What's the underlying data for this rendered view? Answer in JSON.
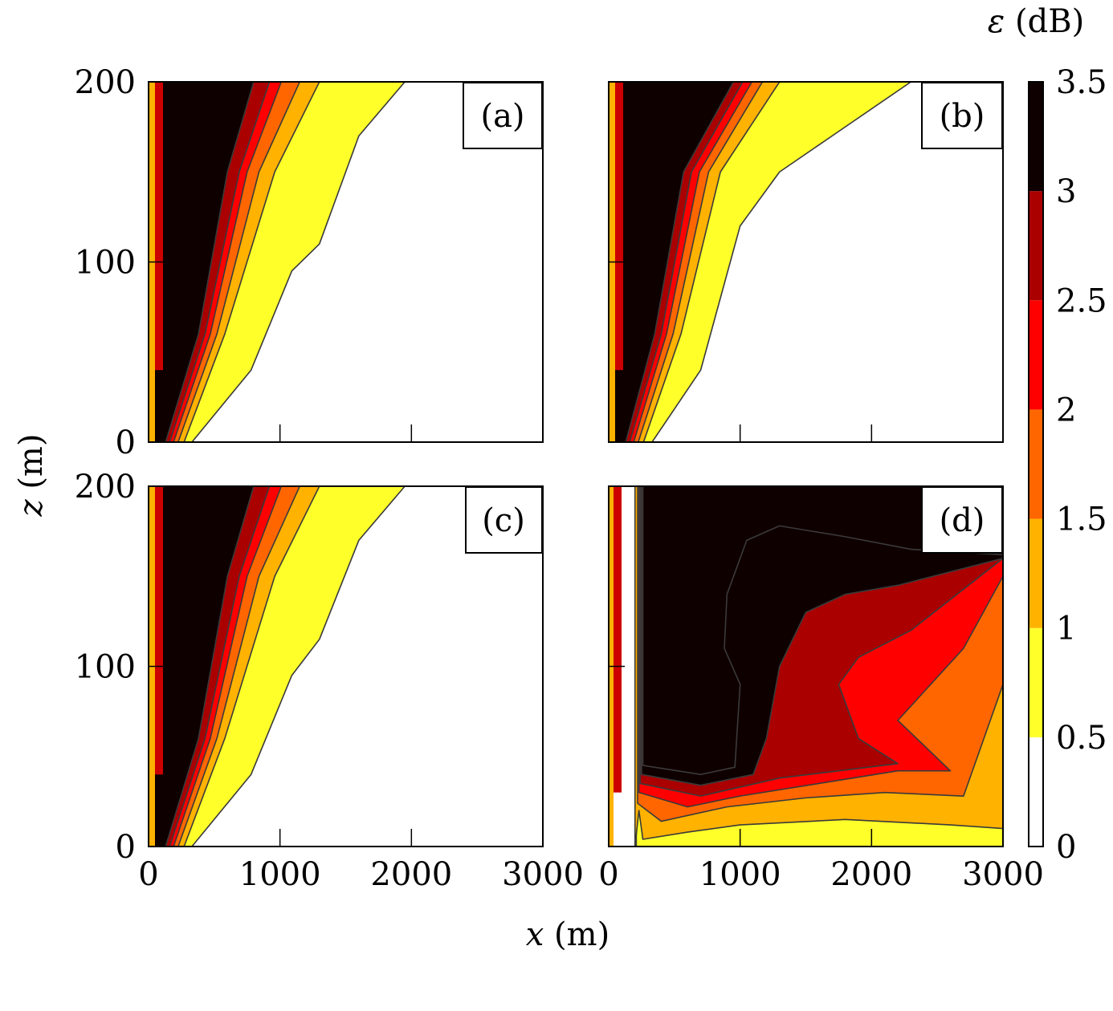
{
  "chart_data": {
    "type": "heatmap",
    "subtype": "filled-contour",
    "x_axis": {
      "label": "x (m)",
      "var": "x",
      "unit": " (m)",
      "range": [
        0,
        3000
      ],
      "ticks": [
        0,
        1000,
        2000,
        3000
      ]
    },
    "y_axis": {
      "label": "z (m)",
      "var": "z",
      "unit": " (m)",
      "range": [
        0,
        200
      ],
      "ticks": [
        0,
        100,
        200
      ]
    },
    "colorbar": {
      "label": "ε (dB)",
      "var": "ε",
      "unit": " (dB)",
      "range": [
        0,
        3.5
      ],
      "levels": [
        0,
        0.5,
        1,
        1.5,
        2,
        2.5,
        3,
        3.5
      ],
      "tick_labels": [
        "0",
        "0.5",
        "1",
        "1.5",
        "2",
        "2.5",
        "3",
        "3.5"
      ],
      "colors": [
        "#ffffff",
        "#ffff2a",
        "#ffb200",
        "#ff6600",
        "#ff0000",
        "#aa0000",
        "#0f0000"
      ]
    },
    "panels": [
      {
        "label": "(a)",
        "contours": [
          {
            "level": 3.0,
            "points": [
              [
                130,
                0
              ],
              [
                380,
                60
              ],
              [
                600,
                150
              ],
              [
                800,
                200
              ]
            ]
          },
          {
            "level": 2.5,
            "points": [
              [
                160,
                0
              ],
              [
                430,
                60
              ],
              [
                690,
                150
              ],
              [
                920,
                200
              ]
            ]
          },
          {
            "level": 2.0,
            "points": [
              [
                190,
                0
              ],
              [
                470,
                60
              ],
              [
                750,
                150
              ],
              [
                1010,
                200
              ]
            ]
          },
          {
            "level": 1.5,
            "points": [
              [
                225,
                0
              ],
              [
                520,
                60
              ],
              [
                840,
                150
              ],
              [
                1150,
                200
              ]
            ]
          },
          {
            "level": 1.0,
            "points": [
              [
                270,
                0
              ],
              [
                580,
                60
              ],
              [
                960,
                150
              ],
              [
                1300,
                200
              ]
            ]
          },
          {
            "level": 0.5,
            "points": [
              [
                330,
                0
              ],
              [
                780,
                40
              ],
              [
                1090,
                95
              ],
              [
                1300,
                110
              ],
              [
                1600,
                170
              ],
              [
                1950,
                200
              ]
            ]
          }
        ]
      },
      {
        "label": "(b)",
        "contours": [
          {
            "level": 3.0,
            "points": [
              [
                130,
                0
              ],
              [
                350,
                60
              ],
              [
                570,
                150
              ],
              [
                950,
                200
              ]
            ]
          },
          {
            "level": 2.5,
            "points": [
              [
                160,
                0
              ],
              [
                400,
                60
              ],
              [
                630,
                150
              ],
              [
                1020,
                200
              ]
            ]
          },
          {
            "level": 2.0,
            "points": [
              [
                190,
                0
              ],
              [
                440,
                60
              ],
              [
                690,
                150
              ],
              [
                1090,
                200
              ]
            ]
          },
          {
            "level": 1.5,
            "points": [
              [
                225,
                0
              ],
              [
                490,
                60
              ],
              [
                760,
                150
              ],
              [
                1170,
                200
              ]
            ]
          },
          {
            "level": 1.0,
            "points": [
              [
                265,
                0
              ],
              [
                550,
                60
              ],
              [
                850,
                150
              ],
              [
                1300,
                200
              ]
            ]
          },
          {
            "level": 0.5,
            "points": [
              [
                330,
                0
              ],
              [
                700,
                40
              ],
              [
                1000,
                120
              ],
              [
                1300,
                150
              ],
              [
                1700,
                170
              ],
              [
                2300,
                200
              ]
            ]
          }
        ]
      },
      {
        "label": "(c)",
        "contours": [
          {
            "level": 3.0,
            "points": [
              [
                130,
                0
              ],
              [
                380,
                60
              ],
              [
                600,
                150
              ],
              [
                800,
                200
              ]
            ]
          },
          {
            "level": 2.5,
            "points": [
              [
                160,
                0
              ],
              [
                430,
                60
              ],
              [
                690,
                150
              ],
              [
                920,
                200
              ]
            ]
          },
          {
            "level": 2.0,
            "points": [
              [
                190,
                0
              ],
              [
                470,
                60
              ],
              [
                750,
                150
              ],
              [
                1010,
                200
              ]
            ]
          },
          {
            "level": 1.5,
            "points": [
              [
                225,
                0
              ],
              [
                520,
                60
              ],
              [
                840,
                150
              ],
              [
                1150,
                200
              ]
            ]
          },
          {
            "level": 1.0,
            "points": [
              [
                270,
                0
              ],
              [
                580,
                60
              ],
              [
                960,
                150
              ],
              [
                1300,
                200
              ]
            ]
          },
          {
            "level": 0.5,
            "points": [
              [
                330,
                0
              ],
              [
                780,
                40
              ],
              [
                1090,
                95
              ],
              [
                1300,
                115
              ],
              [
                1600,
                170
              ],
              [
                1950,
                200
              ]
            ]
          }
        ]
      },
      {
        "label": "(d)",
        "regions": [
          {
            "level": 0.5,
            "points": [
              [
                210,
                0
              ],
              [
                210,
                200
              ],
              [
                3000,
                200
              ],
              [
                3000,
                0
              ]
            ]
          },
          {
            "level": 1.0,
            "points": [
              [
                200,
                0
              ],
              [
                230,
                20
              ],
              [
                260,
                4
              ],
              [
                600,
                8
              ],
              [
                1000,
                12
              ],
              [
                1800,
                15
              ],
              [
                2600,
                12
              ],
              [
                3000,
                10
              ],
              [
                3000,
                200
              ],
              [
                200,
                200
              ]
            ]
          },
          {
            "level": 1.5,
            "points": [
              [
                220,
                24
              ],
              [
                400,
                14
              ],
              [
                900,
                22
              ],
              [
                1500,
                27
              ],
              [
                2100,
                30
              ],
              [
                2700,
                28
              ],
              [
                3000,
                90
              ],
              [
                3000,
                200
              ],
              [
                220,
                200
              ]
            ]
          },
          {
            "level": 2.0,
            "points": [
              [
                230,
                30
              ],
              [
                600,
                22
              ],
              [
                1000,
                28
              ],
              [
                1600,
                35
              ],
              [
                2200,
                42
              ],
              [
                2600,
                42
              ],
              [
                2200,
                70
              ],
              [
                2700,
                110
              ],
              [
                3000,
                150
              ],
              [
                3000,
                200
              ],
              [
                230,
                200
              ]
            ]
          },
          {
            "level": 2.5,
            "points": [
              [
                240,
                35
              ],
              [
                700,
                28
              ],
              [
                1300,
                38
              ],
              [
                2200,
                46
              ],
              [
                1900,
                60
              ],
              [
                1750,
                90
              ],
              [
                1900,
                105
              ],
              [
                2300,
                120
              ],
              [
                3000,
                160
              ],
              [
                3000,
                200
              ],
              [
                240,
                200
              ]
            ]
          },
          {
            "level": 3.0,
            "points": [
              [
                250,
                40
              ],
              [
                700,
                34
              ],
              [
                1100,
                40
              ],
              [
                1200,
                60
              ],
              [
                1300,
                100
              ],
              [
                1500,
                130
              ],
              [
                1800,
                140
              ],
              [
                2200,
                145
              ],
              [
                3000,
                160
              ],
              [
                3000,
                200
              ],
              [
                250,
                200
              ]
            ]
          },
          {
            "level": 3.5,
            "points": [
              [
                260,
                45
              ],
              [
                700,
                40
              ],
              [
                960,
                44
              ],
              [
                1000,
                90
              ],
              [
                880,
                110
              ],
              [
                900,
                140
              ],
              [
                1050,
                170
              ],
              [
                1300,
                178
              ],
              [
                1800,
                172
              ],
              [
                2300,
                165
              ],
              [
                3000,
                162
              ],
              [
                3000,
                200
              ],
              [
                260,
                200
              ]
            ]
          }
        ]
      }
    ]
  }
}
